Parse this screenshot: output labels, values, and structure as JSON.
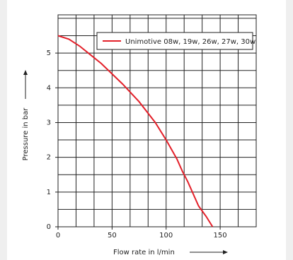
{
  "chart_data": {
    "type": "line",
    "x_label": "Flow rate in l/min",
    "y_label": "Pressure in bar",
    "x": [
      0,
      10,
      20,
      30,
      40,
      50,
      60,
      75,
      90,
      100,
      110,
      115,
      120,
      130,
      137,
      143
    ],
    "series": [
      {
        "name": "Unimotive 08w, 19w, 26w, 27w, 30w",
        "color": "#e3202a",
        "values": [
          5.5,
          5.4,
          5.2,
          4.95,
          4.7,
          4.4,
          4.1,
          3.6,
          3.0,
          2.5,
          1.95,
          1.6,
          1.3,
          0.6,
          0.3,
          0
        ]
      }
    ],
    "xlim": [
      0,
      183.33
    ],
    "ylim": [
      0,
      6.1
    ],
    "xticks": [
      0,
      50,
      100,
      150
    ],
    "yticks": [
      0,
      1,
      2,
      3,
      4,
      5
    ],
    "xgrid": [
      16.67,
      33.33,
      66.67,
      83.33,
      116.67,
      133.33,
      166.67
    ],
    "ygrid": [
      0.5,
      1.5,
      2.5,
      3.5,
      4.5,
      5.5,
      6
    ],
    "grid": true,
    "legend": "upper right"
  }
}
